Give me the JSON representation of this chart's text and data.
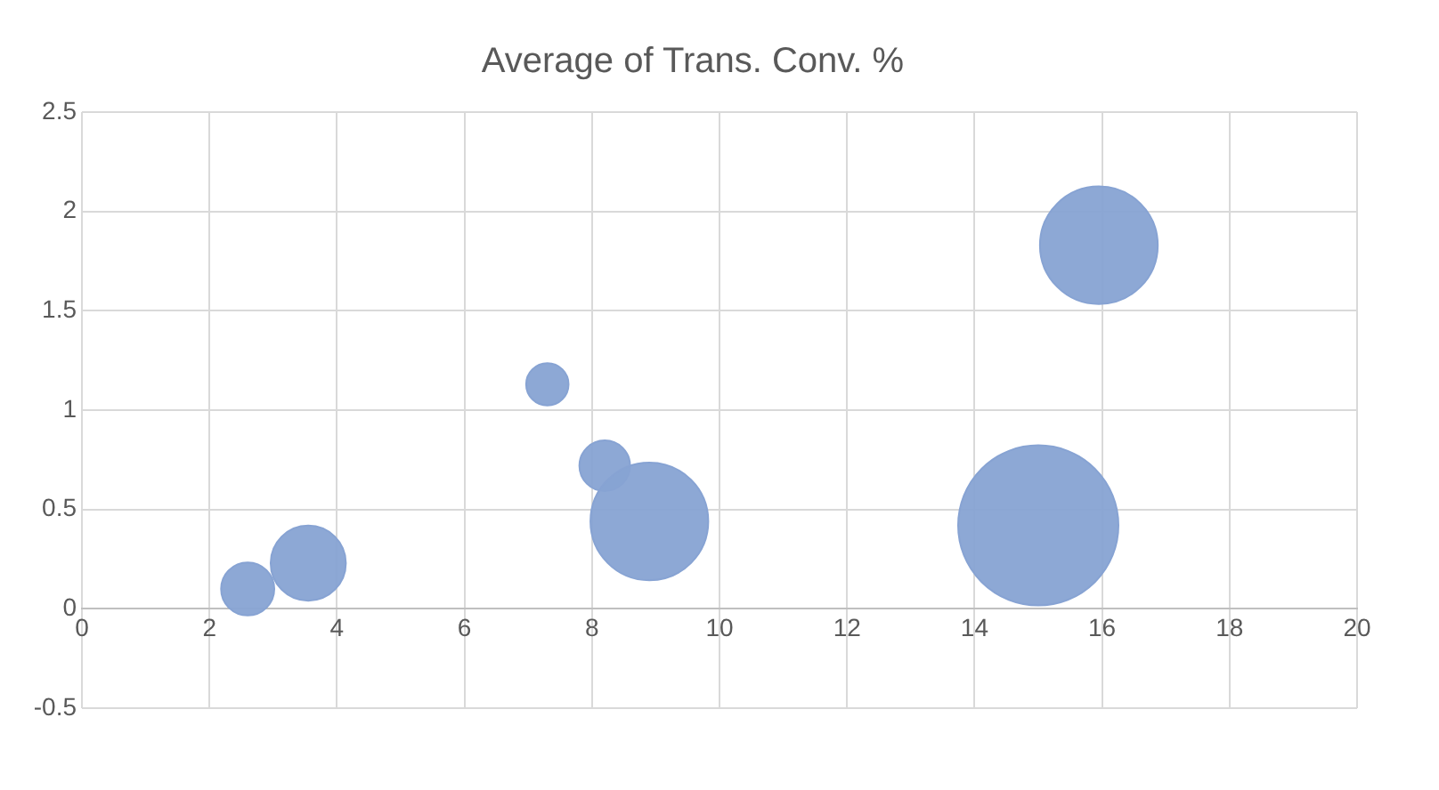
{
  "chart_data": {
    "type": "bubble",
    "title": "Average of Trans. Conv. %",
    "x": [
      2.6,
      3.55,
      7.3,
      8.2,
      8.9,
      15.0,
      15.95
    ],
    "values": [
      0.1,
      0.23,
      1.13,
      0.72,
      0.44,
      0.42,
      1.83
    ],
    "sizes": [
      0.11,
      0.22,
      0.07,
      0.1,
      0.54,
      1,
      0.54
    ],
    "color": "#87a3d3",
    "xlim": [
      0,
      20
    ],
    "xticks": [
      0,
      2,
      4,
      6,
      8,
      10,
      12,
      14,
      16,
      18,
      20
    ],
    "ylim": [
      -0.5,
      2.5
    ],
    "yticks": [
      -0.5,
      0,
      0.5,
      1,
      1.5,
      2,
      2.5
    ],
    "grid": true,
    "legend": false
  }
}
